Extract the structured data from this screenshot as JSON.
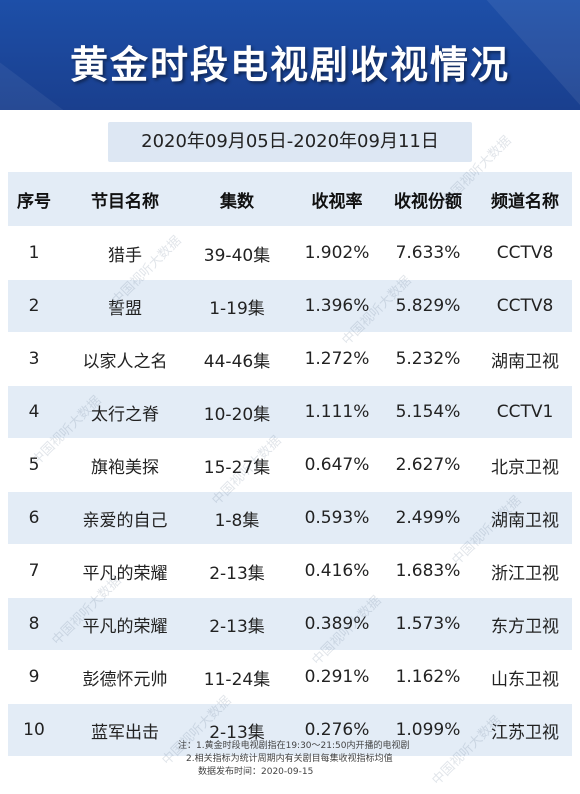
{
  "title": "黄金时段电视剧收视情况",
  "date_range": "2020年09月05日-2020年09月11日",
  "columns": [
    "序号",
    "节目名称",
    "集数",
    "收视率",
    "收视份额",
    "频道名称"
  ],
  "rows": [
    {
      "rank": "1",
      "name": "猎手",
      "episodes": "39-40集",
      "rating": "1.902%",
      "share": "7.633%",
      "channel": "CCTV8"
    },
    {
      "rank": "2",
      "name": "誓盟",
      "episodes": "1-19集",
      "rating": "1.396%",
      "share": "5.829%",
      "channel": "CCTV8"
    },
    {
      "rank": "3",
      "name": "以家人之名",
      "episodes": "44-46集",
      "rating": "1.272%",
      "share": "5.232%",
      "channel": "湖南卫视"
    },
    {
      "rank": "4",
      "name": "太行之脊",
      "episodes": "10-20集",
      "rating": "1.111%",
      "share": "5.154%",
      "channel": "CCTV1"
    },
    {
      "rank": "5",
      "name": "旗袍美探",
      "episodes": "15-27集",
      "rating": "0.647%",
      "share": "2.627%",
      "channel": "北京卫视"
    },
    {
      "rank": "6",
      "name": "亲爱的自己",
      "episodes": "1-8集",
      "rating": "0.593%",
      "share": "2.499%",
      "channel": "湖南卫视"
    },
    {
      "rank": "7",
      "name": "平凡的荣耀",
      "episodes": "2-13集",
      "rating": "0.416%",
      "share": "1.683%",
      "channel": "浙江卫视"
    },
    {
      "rank": "8",
      "name": "平凡的荣耀",
      "episodes": "2-13集",
      "rating": "0.389%",
      "share": "1.573%",
      "channel": "东方卫视"
    },
    {
      "rank": "9",
      "name": "彭德怀元帅",
      "episodes": "11-24集",
      "rating": "0.291%",
      "share": "1.162%",
      "channel": "山东卫视"
    },
    {
      "rank": "10",
      "name": "蓝军出击",
      "episodes": "2-13集",
      "rating": "0.276%",
      "share": "1.099%",
      "channel": "江苏卫视"
    }
  ],
  "notes": [
    "注：1.黄金时段电视剧指在19:30～21:50内开播的电视剧",
    "2.相关指标为统计周期内有关剧目每集收视指标均值",
    "数据发布时间：2020-09-15"
  ],
  "watermark": "中国视听大数据",
  "colors": {
    "header_blue": "#1d4fa8",
    "row_tint": "#e3ecf6",
    "date_bar": "#dde7f3"
  }
}
